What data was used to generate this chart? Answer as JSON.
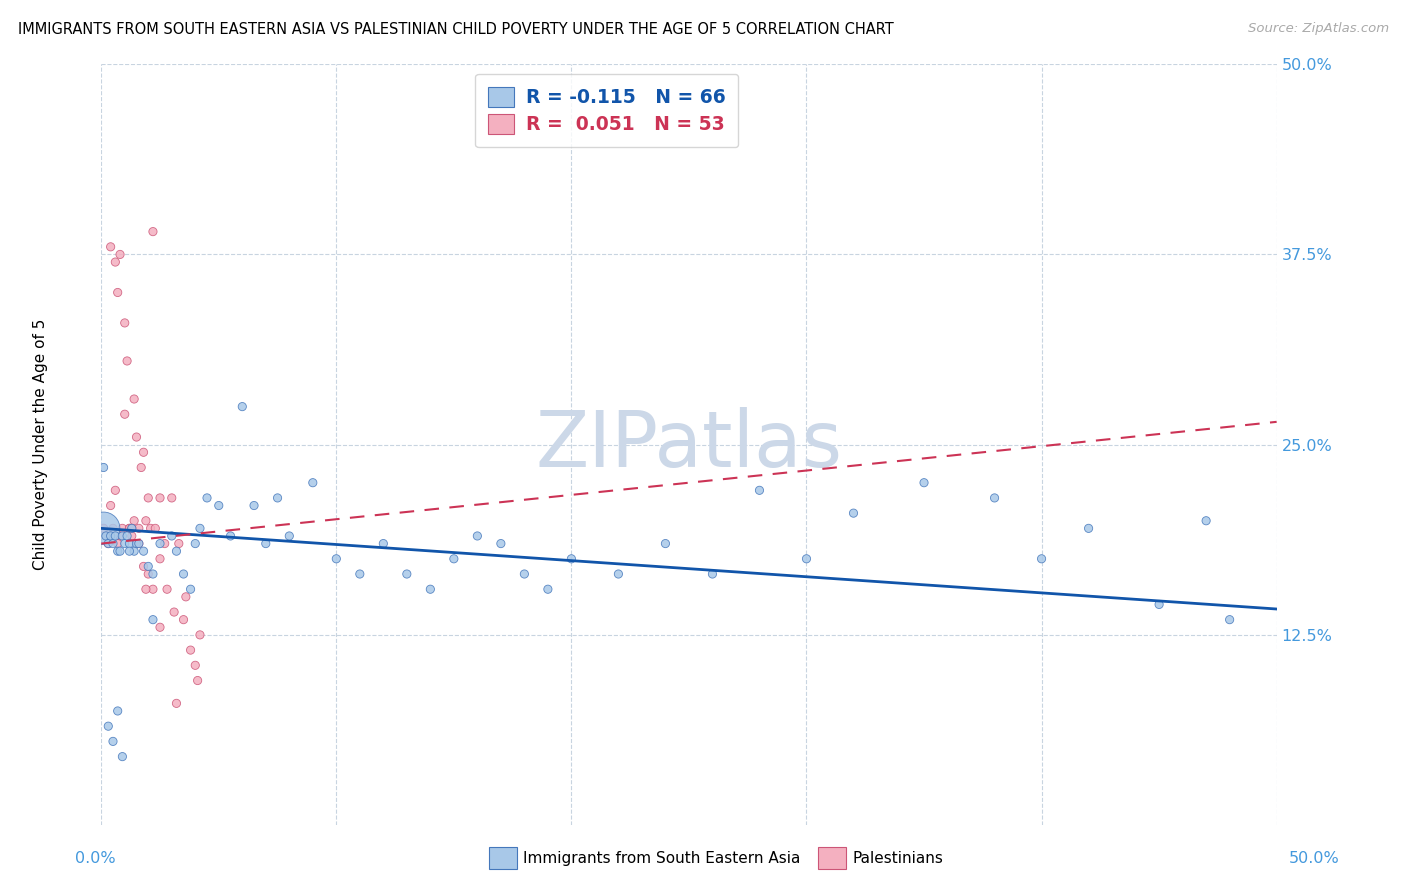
{
  "title": "IMMIGRANTS FROM SOUTH EASTERN ASIA VS PALESTINIAN CHILD POVERTY UNDER THE AGE OF 5 CORRELATION CHART",
  "source": "Source: ZipAtlas.com",
  "ylabel": "Child Poverty Under the Age of 5",
  "xmin": 0.0,
  "xmax": 0.5,
  "ymin": 0.0,
  "ymax": 0.5,
  "yticks": [
    0.125,
    0.25,
    0.375,
    0.5
  ],
  "ytick_labels": [
    "12.5%",
    "25.0%",
    "37.5%",
    "50.0%"
  ],
  "xtick_positions": [
    0.0,
    0.1,
    0.2,
    0.3,
    0.4,
    0.5
  ],
  "blue_R": -0.115,
  "blue_N": 66,
  "pink_R": 0.051,
  "pink_N": 53,
  "blue_color": "#a8c8e8",
  "pink_color": "#f4b0c0",
  "blue_edge_color": "#4477bb",
  "pink_edge_color": "#cc5577",
  "blue_line_color": "#1155aa",
  "pink_line_color": "#cc3355",
  "tick_color": "#4499dd",
  "watermark": "ZIPatlas",
  "watermark_color": "#ccd8e8",
  "legend_label_blue": "Immigrants from South Eastern Asia",
  "legend_label_pink": "Palestinians",
  "blue_scatter_x": [
    0.001,
    0.002,
    0.003,
    0.004,
    0.005,
    0.006,
    0.007,
    0.008,
    0.009,
    0.01,
    0.011,
    0.012,
    0.013,
    0.014,
    0.015,
    0.018,
    0.02,
    0.022,
    0.025,
    0.03,
    0.032,
    0.035,
    0.038,
    0.04,
    0.042,
    0.045,
    0.05,
    0.055,
    0.06,
    0.065,
    0.07,
    0.075,
    0.08,
    0.09,
    0.1,
    0.11,
    0.12,
    0.13,
    0.14,
    0.15,
    0.16,
    0.17,
    0.18,
    0.19,
    0.2,
    0.22,
    0.24,
    0.26,
    0.28,
    0.3,
    0.32,
    0.35,
    0.38,
    0.4,
    0.42,
    0.45,
    0.47,
    0.48,
    0.003,
    0.005,
    0.007,
    0.009,
    0.012,
    0.016,
    0.022,
    0.001
  ],
  "blue_scatter_y": [
    0.195,
    0.19,
    0.185,
    0.19,
    0.185,
    0.19,
    0.18,
    0.18,
    0.19,
    0.185,
    0.19,
    0.185,
    0.195,
    0.18,
    0.185,
    0.18,
    0.17,
    0.165,
    0.185,
    0.19,
    0.18,
    0.165,
    0.155,
    0.185,
    0.195,
    0.215,
    0.21,
    0.19,
    0.275,
    0.21,
    0.185,
    0.215,
    0.19,
    0.225,
    0.175,
    0.165,
    0.185,
    0.165,
    0.155,
    0.175,
    0.19,
    0.185,
    0.165,
    0.155,
    0.175,
    0.165,
    0.185,
    0.165,
    0.22,
    0.175,
    0.205,
    0.225,
    0.215,
    0.175,
    0.195,
    0.145,
    0.2,
    0.135,
    0.065,
    0.055,
    0.075,
    0.045,
    0.18,
    0.185,
    0.135,
    0.235
  ],
  "blue_scatter_size": [
    550,
    35,
    35,
    35,
    35,
    35,
    35,
    35,
    35,
    35,
    35,
    35,
    35,
    35,
    35,
    35,
    35,
    35,
    35,
    35,
    35,
    35,
    35,
    35,
    35,
    35,
    35,
    35,
    35,
    35,
    35,
    35,
    35,
    35,
    35,
    35,
    35,
    35,
    35,
    35,
    35,
    35,
    35,
    35,
    35,
    35,
    35,
    35,
    35,
    35,
    35,
    35,
    35,
    35,
    35,
    35,
    35,
    35,
    35,
    35,
    35,
    35,
    35,
    35,
    35,
    35
  ],
  "pink_scatter_x": [
    0.001,
    0.002,
    0.003,
    0.004,
    0.005,
    0.006,
    0.007,
    0.008,
    0.009,
    0.01,
    0.011,
    0.012,
    0.013,
    0.014,
    0.015,
    0.016,
    0.017,
    0.018,
    0.019,
    0.02,
    0.021,
    0.022,
    0.023,
    0.025,
    0.027,
    0.03,
    0.033,
    0.036,
    0.04,
    0.042,
    0.004,
    0.006,
    0.008,
    0.01,
    0.012,
    0.014,
    0.016,
    0.018,
    0.02,
    0.022,
    0.025,
    0.028,
    0.031,
    0.035,
    0.038,
    0.041,
    0.001,
    0.003,
    0.007,
    0.013,
    0.019,
    0.025,
    0.032
  ],
  "pink_scatter_y": [
    0.195,
    0.19,
    0.185,
    0.21,
    0.195,
    0.22,
    0.35,
    0.19,
    0.195,
    0.27,
    0.305,
    0.195,
    0.19,
    0.28,
    0.255,
    0.195,
    0.235,
    0.245,
    0.2,
    0.215,
    0.195,
    0.39,
    0.195,
    0.215,
    0.185,
    0.215,
    0.185,
    0.15,
    0.105,
    0.125,
    0.38,
    0.37,
    0.375,
    0.33,
    0.195,
    0.2,
    0.185,
    0.17,
    0.165,
    0.155,
    0.175,
    0.155,
    0.14,
    0.135,
    0.115,
    0.095,
    0.195,
    0.19,
    0.185,
    0.195,
    0.155,
    0.13,
    0.08
  ],
  "pink_scatter_size": [
    35,
    35,
    35,
    35,
    35,
    35,
    35,
    35,
    35,
    35,
    35,
    35,
    35,
    35,
    35,
    35,
    35,
    35,
    35,
    35,
    35,
    35,
    35,
    35,
    35,
    35,
    35,
    35,
    35,
    35,
    35,
    35,
    35,
    35,
    35,
    35,
    35,
    35,
    35,
    35,
    35,
    35,
    35,
    35,
    35,
    35,
    35,
    35,
    35,
    35,
    35,
    35,
    35
  ],
  "blue_trend_start_y": 0.195,
  "blue_trend_end_y": 0.142,
  "pink_trend_start_y": 0.185,
  "pink_trend_end_y": 0.265
}
